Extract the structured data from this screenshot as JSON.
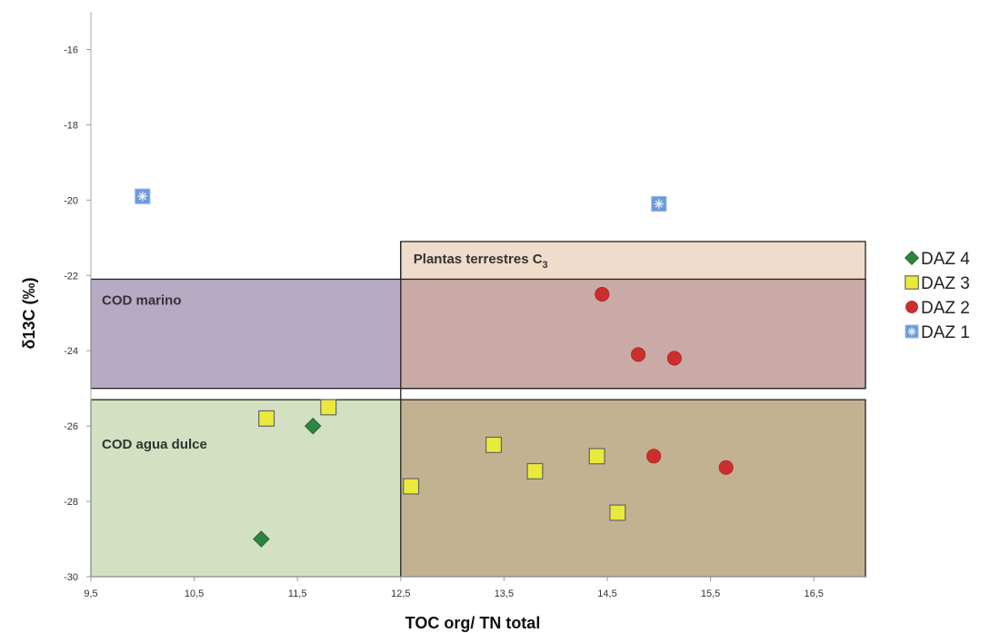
{
  "chart_data": {
    "type": "scatter",
    "xlabel": "TOC org/ TN total",
    "ylabel": "δ13C (‰)",
    "xlim": [
      9.5,
      17.0
    ],
    "ylim": [
      -30,
      -15
    ],
    "x_ticks": [
      9.5,
      10.5,
      11.5,
      12.5,
      13.5,
      14.5,
      15.5,
      16.5
    ],
    "x_tick_labels": [
      "9,5",
      "10,5",
      "11,5",
      "12,5",
      "13,5",
      "14,5",
      "15,5",
      "16,5"
    ],
    "y_ticks": [
      -16,
      -18,
      -20,
      -22,
      -24,
      -26,
      -28,
      -30
    ],
    "y_tick_labels": [
      "-16",
      "-18",
      "-20",
      "-22",
      "-24",
      "-26",
      "-28",
      "-30"
    ],
    "grid": false,
    "legend_position": "right",
    "regions": [
      {
        "label": "Plantas terrestres C",
        "label_sub": "3",
        "x": [
          12.5,
          17.0
        ],
        "y": [
          -25.0,
          -21.1
        ],
        "color": "#f0dccb"
      },
      {
        "label": "COD marino",
        "x": [
          9.5,
          17.0
        ],
        "y": [
          -25.0,
          -22.1
        ],
        "color": "#b7aac4",
        "overlap_color": "#c9aaa6"
      },
      {
        "label": "COD agua dulce",
        "x": [
          9.5,
          17.0
        ],
        "y": [
          -30.0,
          -25.3
        ],
        "color": "#d3e0c2",
        "overlap_color": "#c3b292"
      }
    ],
    "series": [
      {
        "name": "DAZ 4",
        "marker": "diamond",
        "color": "#2e8540",
        "points": [
          [
            11.65,
            -26.0
          ],
          [
            11.15,
            -29.0
          ]
        ]
      },
      {
        "name": "DAZ 3",
        "marker": "square",
        "color": "#eaea3c",
        "points": [
          [
            11.2,
            -25.8
          ],
          [
            11.8,
            -25.5
          ],
          [
            12.6,
            -27.6
          ],
          [
            13.4,
            -26.5
          ],
          [
            13.8,
            -27.2
          ],
          [
            14.4,
            -26.8
          ],
          [
            14.6,
            -28.3
          ]
        ]
      },
      {
        "name": "DAZ 2",
        "marker": "circle",
        "color": "#cc2e2e",
        "points": [
          [
            14.45,
            -22.5
          ],
          [
            14.8,
            -24.1
          ],
          [
            15.15,
            -24.2
          ],
          [
            14.95,
            -26.8
          ],
          [
            15.65,
            -27.1
          ]
        ]
      },
      {
        "name": "DAZ 1",
        "marker": "asterisk-square",
        "color": "#6a9ad8",
        "points": [
          [
            10.0,
            -19.9
          ],
          [
            15.0,
            -20.1
          ]
        ]
      }
    ],
    "legend_order": [
      "DAZ 4",
      "DAZ 3",
      "DAZ 2",
      "DAZ 1"
    ]
  }
}
